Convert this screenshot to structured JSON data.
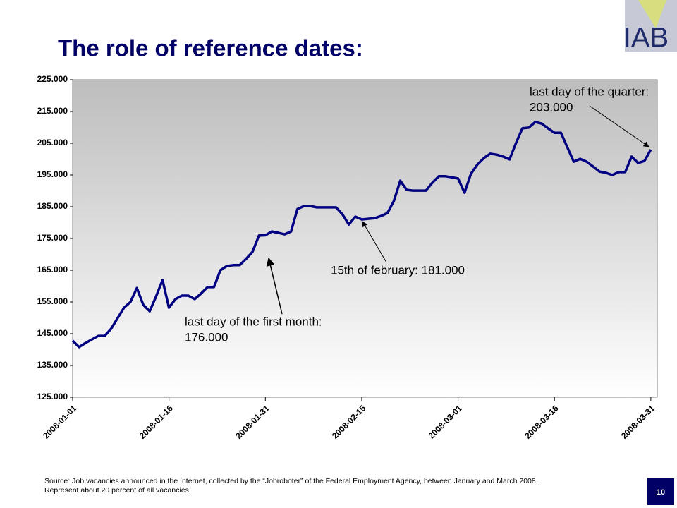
{
  "logo": "IAB",
  "page_number": "10",
  "source": [
    "Source: Job vacancies announced in the Internet, collected by the “Jobroboter” of the Federal Employment Agency, between January and March 2008,",
    "Represent about 20 percent of all vacancies"
  ],
  "chart_data": {
    "type": "line",
    "title": "The role of reference dates:",
    "x": [
      "2008-01-01",
      "2008-01-02",
      "2008-01-03",
      "2008-01-04",
      "2008-01-05",
      "2008-01-06",
      "2008-01-07",
      "2008-01-08",
      "2008-01-09",
      "2008-01-10",
      "2008-01-11",
      "2008-01-12",
      "2008-01-13",
      "2008-01-14",
      "2008-01-15",
      "2008-01-16",
      "2008-01-17",
      "2008-01-18",
      "2008-01-19",
      "2008-01-20",
      "2008-01-21",
      "2008-01-22",
      "2008-01-23",
      "2008-01-24",
      "2008-01-25",
      "2008-01-26",
      "2008-01-27",
      "2008-01-28",
      "2008-01-29",
      "2008-01-30",
      "2008-01-31",
      "2008-02-01",
      "2008-02-02",
      "2008-02-03",
      "2008-02-04",
      "2008-02-05",
      "2008-02-06",
      "2008-02-07",
      "2008-02-08",
      "2008-02-09",
      "2008-02-10",
      "2008-02-11",
      "2008-02-12",
      "2008-02-13",
      "2008-02-14",
      "2008-02-15",
      "2008-02-16",
      "2008-02-17",
      "2008-02-18",
      "2008-02-19",
      "2008-02-20",
      "2008-02-21",
      "2008-02-22",
      "2008-02-23",
      "2008-02-24",
      "2008-02-25",
      "2008-02-26",
      "2008-02-27",
      "2008-02-28",
      "2008-02-29",
      "2008-03-01",
      "2008-03-02",
      "2008-03-03",
      "2008-03-04",
      "2008-03-05",
      "2008-03-06",
      "2008-03-07",
      "2008-03-08",
      "2008-03-09",
      "2008-03-10",
      "2008-03-11",
      "2008-03-12",
      "2008-03-13",
      "2008-03-14",
      "2008-03-15",
      "2008-03-16",
      "2008-03-17",
      "2008-03-18",
      "2008-03-19",
      "2008-03-20",
      "2008-03-21",
      "2008-03-22",
      "2008-03-23",
      "2008-03-24",
      "2008-03-25",
      "2008-03-26",
      "2008-03-27",
      "2008-03-28",
      "2008-03-29",
      "2008-03-30",
      "2008-03-31"
    ],
    "series": [
      {
        "color": "#000080",
        "values": [
          142800,
          140800,
          142100,
          143200,
          144300,
          144300,
          146600,
          149900,
          153200,
          155000,
          159400,
          154100,
          152100,
          156800,
          161900,
          153200,
          155900,
          157000,
          157000,
          155900,
          157700,
          159700,
          159700,
          165000,
          166300,
          166600,
          166600,
          168600,
          170800,
          175900,
          176000,
          177200,
          176800,
          176300,
          177200,
          184300,
          185200,
          185200,
          184800,
          184800,
          184800,
          184800,
          182600,
          179400,
          181900,
          181000,
          181200,
          181400,
          182100,
          183000,
          186800,
          193200,
          190300,
          190100,
          190100,
          190100,
          192600,
          194600,
          194600,
          194300,
          193900,
          189400,
          195400,
          198300,
          200300,
          201700,
          201400,
          200800,
          199900,
          205000,
          209700,
          209900,
          211700,
          211200,
          209700,
          208300,
          208300,
          203700,
          199200,
          200100,
          199200,
          197700,
          196100,
          195700,
          195000,
          195900,
          195900,
          200800,
          198800,
          199400,
          203000
        ]
      }
    ],
    "xlim": [
      "2008-01-01",
      "2008-04-01"
    ],
    "xticks": [
      "2008-01-01",
      "2008-01-16",
      "2008-01-31",
      "2008-02-15",
      "2008-03-01",
      "2008-03-16",
      "2008-03-31"
    ],
    "ylim": [
      125000,
      225000
    ],
    "yticks": [
      {
        "value": 125000,
        "label": "125.000"
      },
      {
        "value": 135000,
        "label": "135.000"
      },
      {
        "value": 145000,
        "label": "145.000"
      },
      {
        "value": 155000,
        "label": "155.000"
      },
      {
        "value": 165000,
        "label": "165.000"
      },
      {
        "value": 175000,
        "label": "175.000"
      },
      {
        "value": 185000,
        "label": "185.000"
      },
      {
        "value": 195000,
        "label": "195.000"
      },
      {
        "value": 205000,
        "label": "205.000"
      },
      {
        "value": 215000,
        "label": "215.000"
      },
      {
        "value": 225000,
        "label": "225.000"
      }
    ],
    "annotations": [
      [
        "last day of the first month:",
        "176.000"
      ],
      [
        "15th of february: 181.000"
      ],
      [
        "last day of the quarter:",
        "203.000"
      ]
    ]
  }
}
